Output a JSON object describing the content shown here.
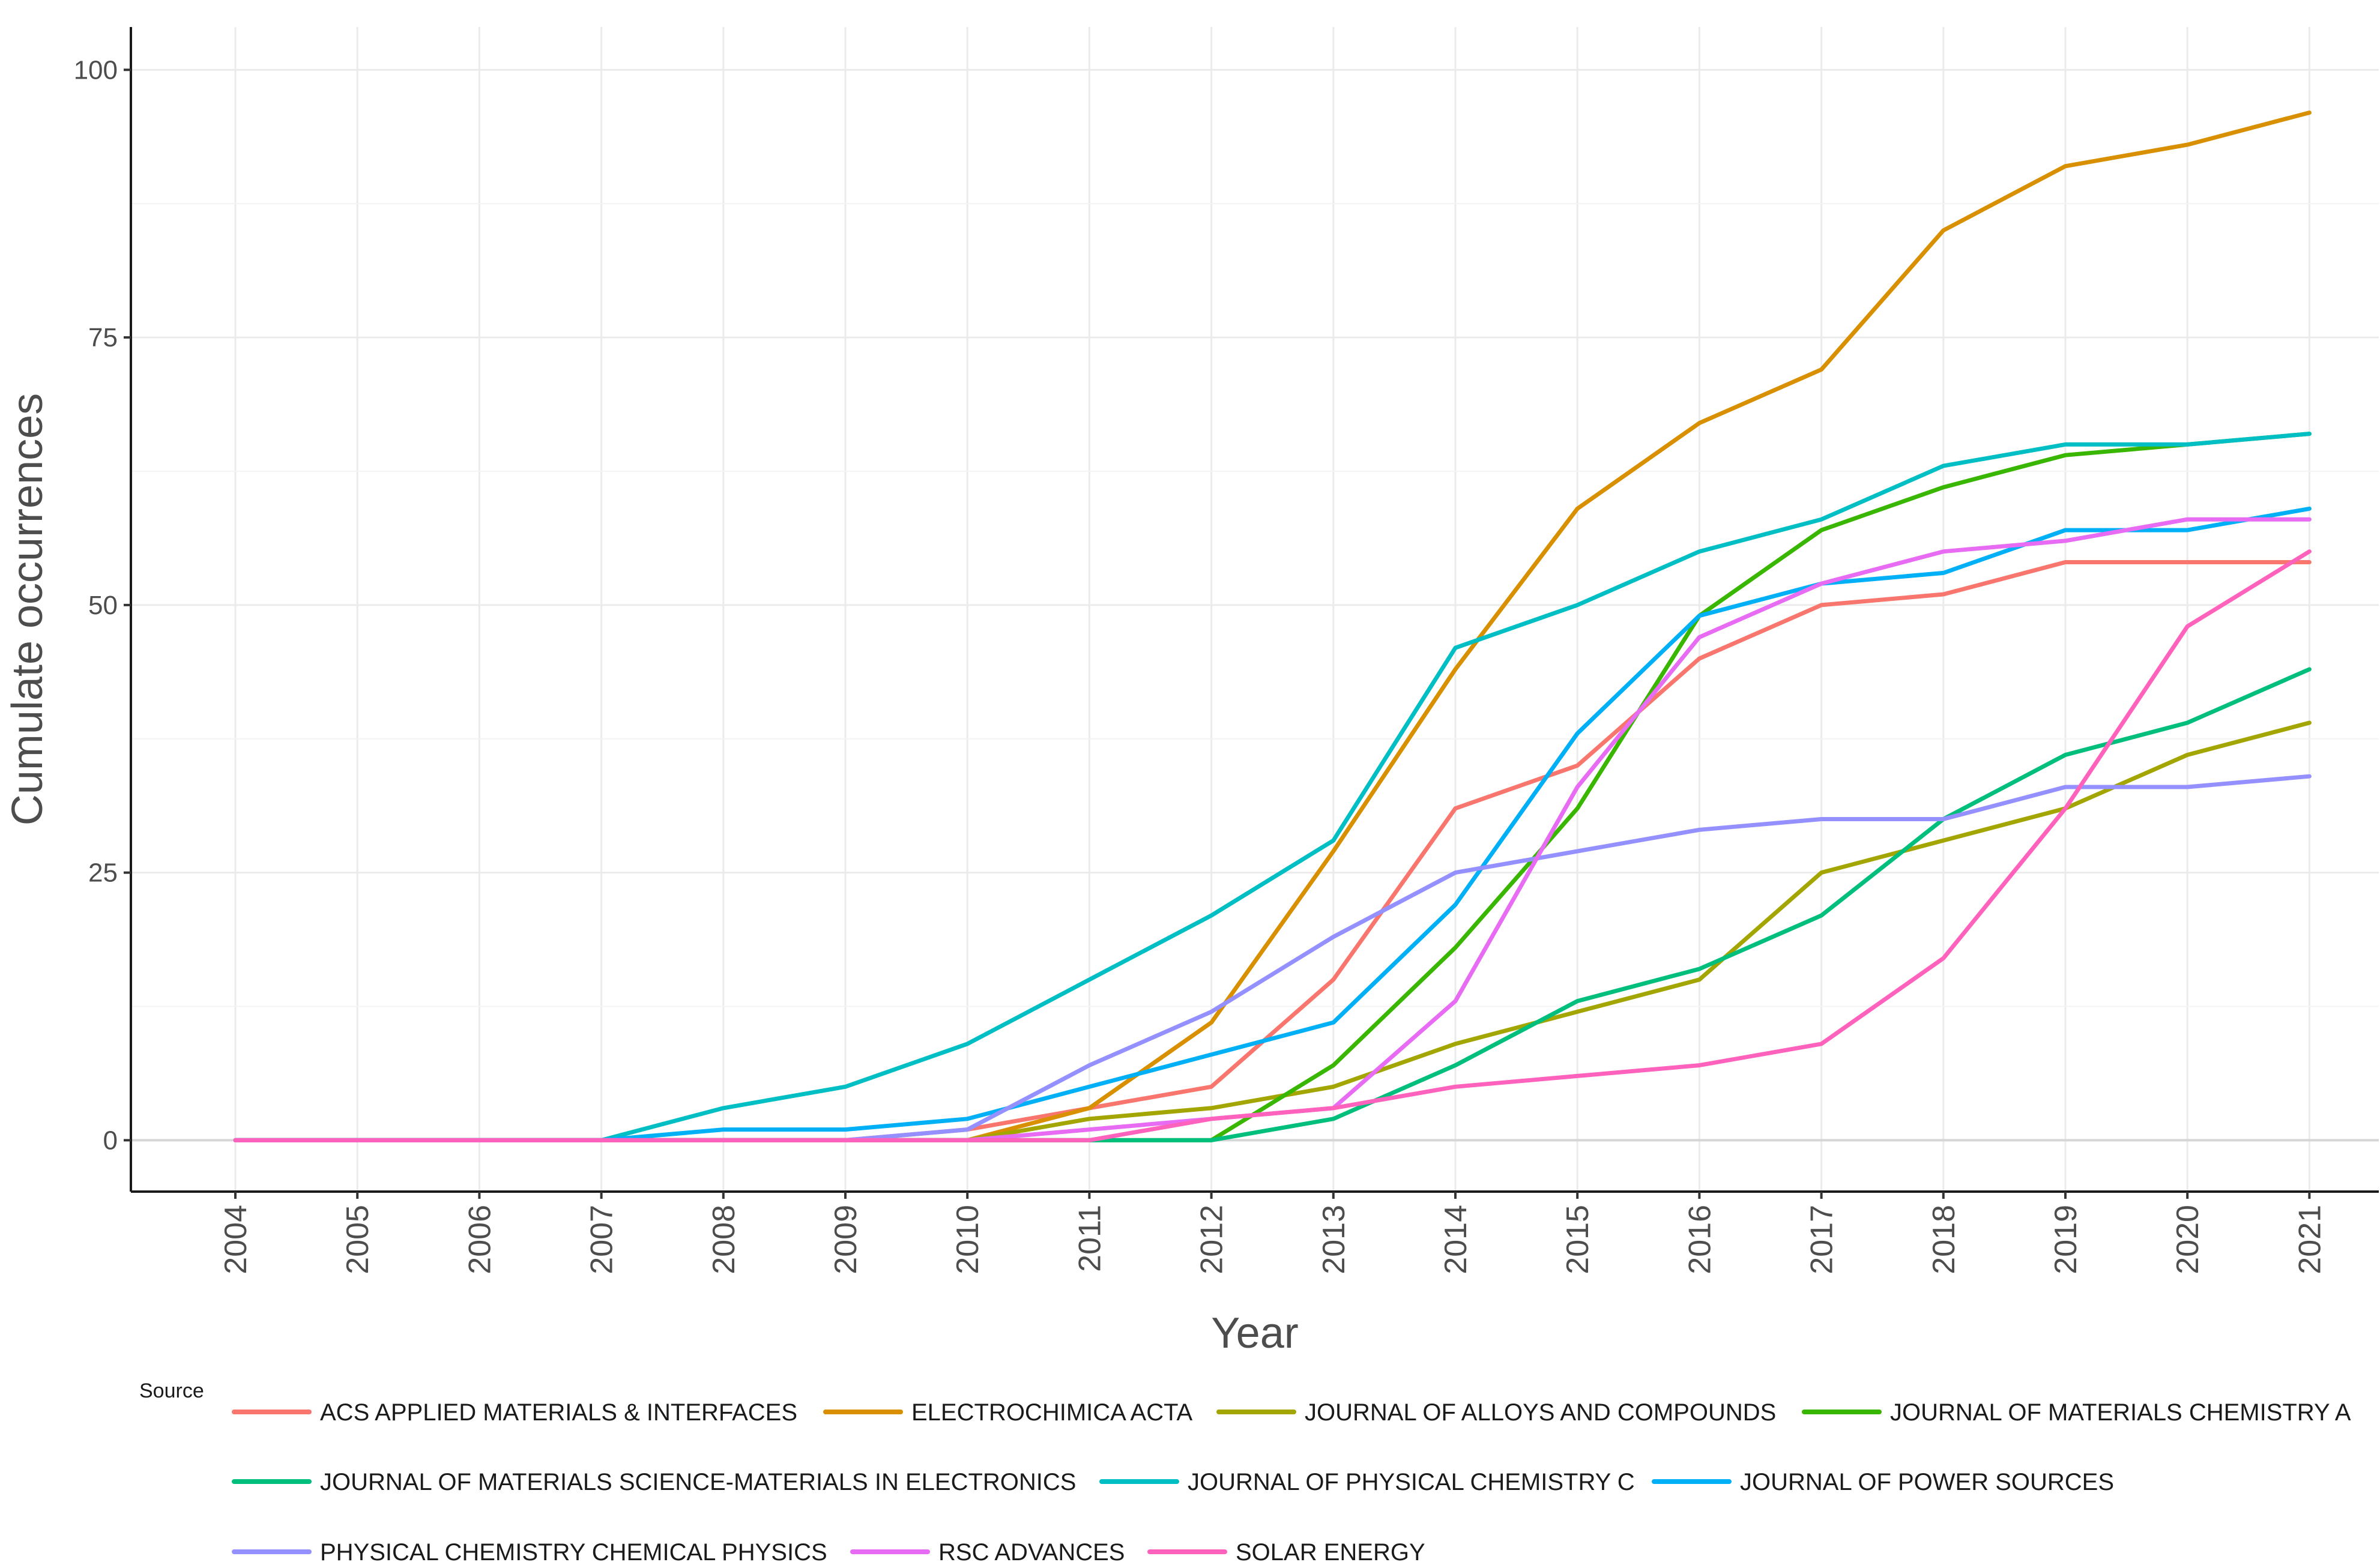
{
  "chart_data": {
    "type": "line",
    "title": "",
    "xlabel": "Year",
    "ylabel": "Cumulate occurrences",
    "ylim": [
      -4.8,
      104
    ],
    "yticks": [
      0,
      25,
      50,
      75,
      100
    ],
    "x": [
      "2004",
      "2005",
      "2006",
      "2007",
      "2008",
      "2009",
      "2010",
      "2011",
      "2012",
      "2013",
      "2014",
      "2015",
      "2016",
      "2017",
      "2018",
      "2019",
      "2020",
      "2021"
    ],
    "legend_title": "Source",
    "legend_position": "bottom",
    "grid": true,
    "series": [
      {
        "name": "ACS APPLIED MATERIALS & INTERFACES",
        "color": "#F8766D",
        "values": [
          0,
          0,
          0,
          0,
          0,
          0,
          1,
          3,
          5,
          15,
          31,
          35,
          45,
          50,
          51,
          54,
          54,
          54
        ]
      },
      {
        "name": "ELECTROCHIMICA ACTA",
        "color": "#D89000",
        "values": [
          0,
          0,
          0,
          0,
          0,
          0,
          0,
          3,
          11,
          27,
          44,
          59,
          67,
          72,
          85,
          91,
          93,
          96
        ]
      },
      {
        "name": "JOURNAL OF ALLOYS AND COMPOUNDS",
        "color": "#A3A500",
        "values": [
          0,
          0,
          0,
          0,
          0,
          0,
          0,
          2,
          3,
          5,
          9,
          12,
          15,
          25,
          28,
          31,
          36,
          39
        ]
      },
      {
        "name": "JOURNAL OF MATERIALS CHEMISTRY A",
        "color": "#39B600",
        "values": [
          0,
          0,
          0,
          0,
          0,
          0,
          0,
          0,
          0,
          7,
          18,
          31,
          49,
          57,
          61,
          64,
          65,
          66
        ]
      },
      {
        "name": "JOURNAL OF MATERIALS SCIENCE-MATERIALS IN ELECTRONICS",
        "color": "#00BF7D",
        "values": [
          0,
          0,
          0,
          0,
          0,
          0,
          0,
          0,
          0,
          2,
          7,
          13,
          16,
          21,
          30,
          36,
          39,
          44
        ]
      },
      {
        "name": "JOURNAL OF PHYSICAL CHEMISTRY C",
        "color": "#00BFC4",
        "values": [
          0,
          0,
          0,
          0,
          3,
          5,
          9,
          15,
          21,
          28,
          46,
          50,
          55,
          58,
          63,
          65,
          65,
          66
        ]
      },
      {
        "name": "JOURNAL OF POWER SOURCES",
        "color": "#00B0F6",
        "values": [
          0,
          0,
          0,
          0,
          1,
          1,
          2,
          5,
          8,
          11,
          22,
          38,
          49,
          52,
          53,
          57,
          57,
          59
        ]
      },
      {
        "name": "PHYSICAL CHEMISTRY CHEMICAL PHYSICS",
        "color": "#9590FF",
        "values": [
          0,
          0,
          0,
          0,
          0,
          0,
          1,
          7,
          12,
          19,
          25,
          27,
          29,
          30,
          30,
          33,
          33,
          34
        ]
      },
      {
        "name": "RSC ADVANCES",
        "color": "#E76BF3",
        "values": [
          0,
          0,
          0,
          0,
          0,
          0,
          0,
          1,
          2,
          3,
          13,
          33,
          47,
          52,
          55,
          56,
          58,
          58
        ]
      },
      {
        "name": "SOLAR ENERGY",
        "color": "#FF62BC",
        "values": [
          0,
          0,
          0,
          0,
          0,
          0,
          0,
          0,
          2,
          3,
          5,
          6,
          7,
          9,
          17,
          31,
          48,
          55
        ]
      }
    ]
  }
}
